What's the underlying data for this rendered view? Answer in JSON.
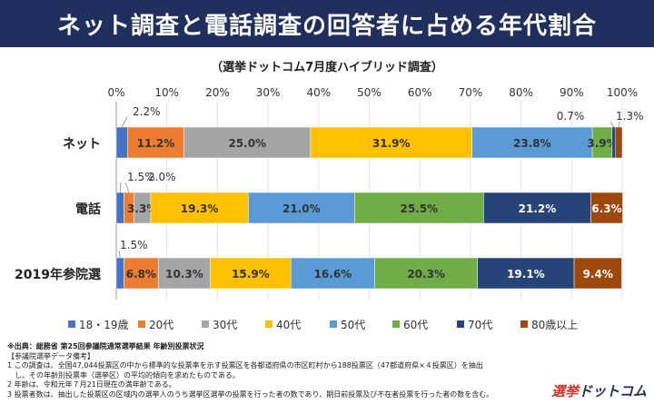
{
  "header": {
    "title": "ネット調査と電話調査の回答者に占める年代割合"
  },
  "chart_data": {
    "type": "bar",
    "subtitle": "（選挙ドットコム7月度ハイブリッド調査）",
    "categories": [
      "ネット",
      "電話",
      "2019年参院選"
    ],
    "x_ticks": [
      "0%",
      "10%",
      "20%",
      "30%",
      "40%",
      "50%",
      "60%",
      "70%",
      "80%",
      "90%",
      "100%"
    ],
    "xlim": [
      0,
      100
    ],
    "series": [
      {
        "name": "18・19歳",
        "color": "#4472c4",
        "values": [
          2.2,
          1.5,
          1.5
        ]
      },
      {
        "name": "20代",
        "color": "#ed7d31",
        "values": [
          11.2,
          2.0,
          6.8
        ]
      },
      {
        "name": "30代",
        "color": "#a5a5a5",
        "values": [
          25.0,
          3.3,
          10.3
        ]
      },
      {
        "name": "40代",
        "color": "#ffc000",
        "values": [
          31.9,
          19.3,
          15.9
        ]
      },
      {
        "name": "50代",
        "color": "#5b9bd5",
        "values": [
          23.8,
          21.0,
          16.6
        ]
      },
      {
        "name": "60代",
        "color": "#70ad47",
        "values": [
          3.9,
          25.5,
          20.3
        ]
      },
      {
        "name": "70代",
        "color": "#264478",
        "values": [
          0.7,
          21.2,
          19.1
        ]
      },
      {
        "name": "80歳以上",
        "color": "#9e480e",
        "values": [
          1.3,
          6.3,
          9.4
        ]
      }
    ],
    "labels": [
      [
        "2.2%",
        "11.2%",
        "25.0%",
        "31.9%",
        "23.8%",
        "3.9%",
        "0.7%",
        "1.3%"
      ],
      [
        "1.5%",
        "2.0%",
        "3.3%",
        "19.3%",
        "21.0%",
        "25.5%",
        "21.2%",
        "6.3%"
      ],
      [
        "1.5%",
        "6.8%",
        "10.3%",
        "15.9%",
        "16.6%",
        "20.3%",
        "19.1%",
        "9.4%"
      ]
    ],
    "stacked": true,
    "orientation": "horizontal",
    "legend_position": "bottom"
  },
  "source": {
    "line1": "※出典：総務省 第25回参議院通常選挙結果 年齢別投票状況",
    "line2": "【参議院選挙データ備考】",
    "line3": "1 この調査は、全国47,044投票区の中から標準的な投票率を示す投票区を各都道府県の市区町村から188投票区（47都道府県×４投票区）を抽出",
    "line4": "　し、その年齢別投票率（選挙区）の平均的傾向を求めたものである。",
    "line5": "2 年齢は、令和元年７月21日現在の満年齢である。",
    "line6": "3 投票者数は、抽出した投票区の区域内の選挙人のうち選挙区選挙の投票を行った者の数であり、期日前投票及び不在者投票を行った者の数を含む。"
  },
  "logo": {
    "part1": "選挙",
    "part2": "ドットコム"
  }
}
